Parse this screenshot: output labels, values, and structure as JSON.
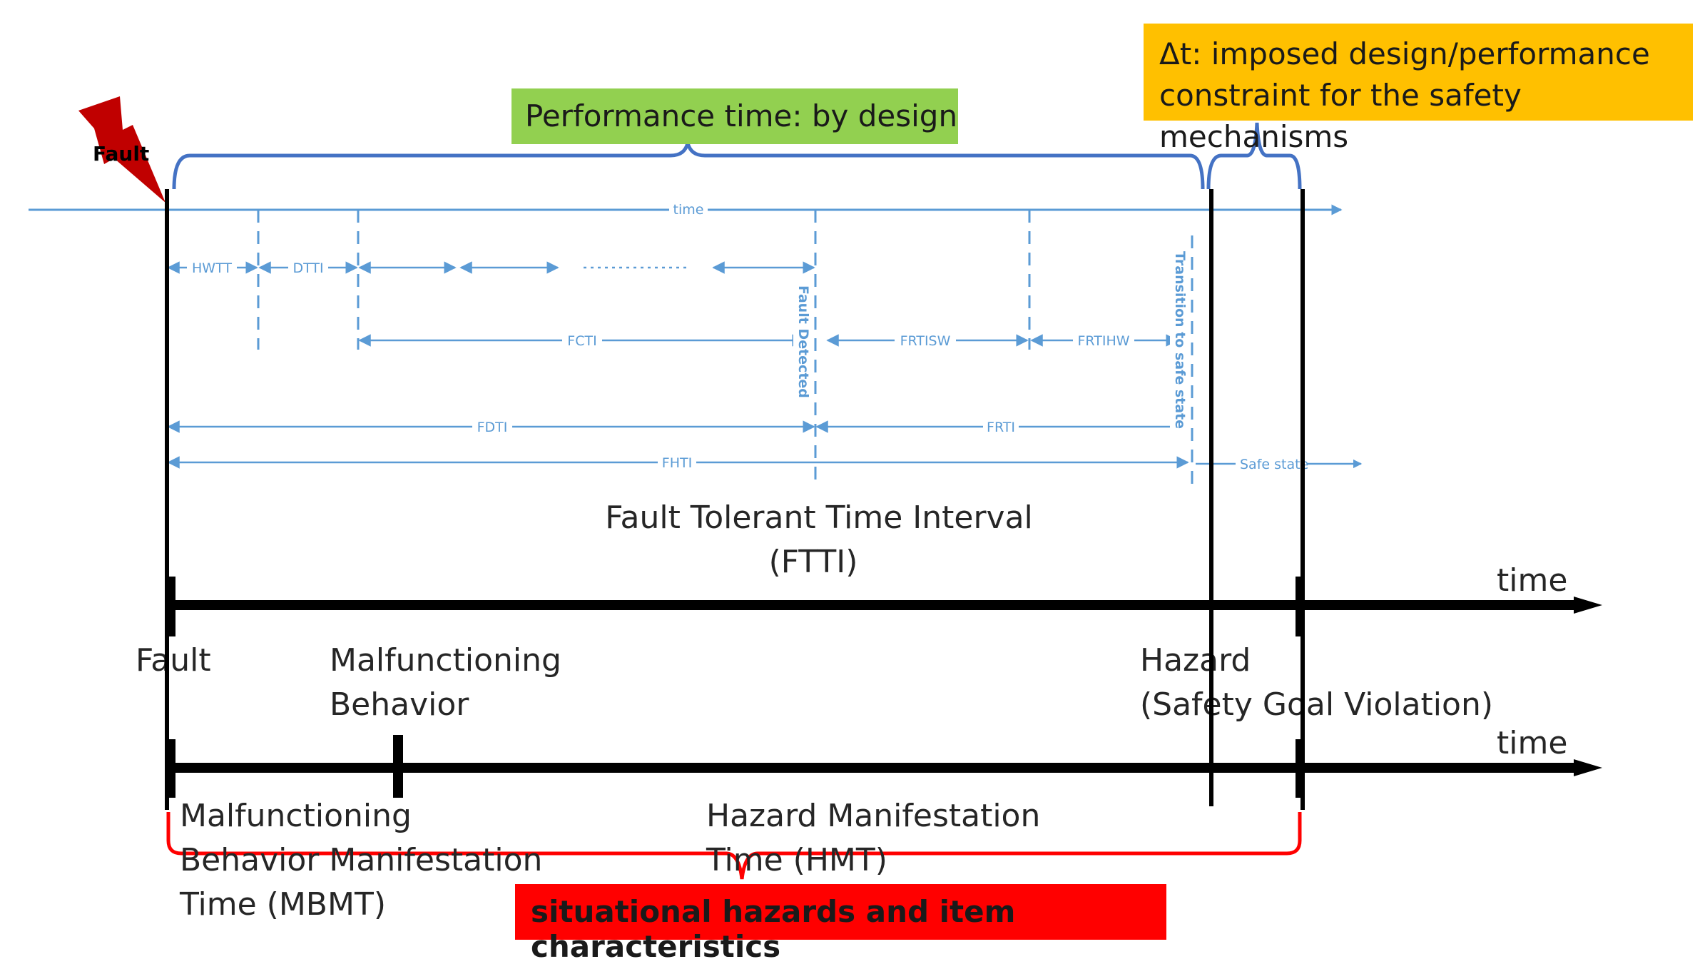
{
  "boxes": {
    "performance_time": "Performance time: by design",
    "delta_t_line1": "Δt: imposed design/performance",
    "delta_t_line2": "constraint for the safety mechanisms",
    "situational": "situational hazards and item characteristics"
  },
  "fault_icon_label": "Fault",
  "timeline_top": {
    "time_label": "time",
    "intervals": {
      "hwtt": "HWTT",
      "dtti": "DTTI",
      "fcti": "FCTI",
      "frtisw": "FRTISW",
      "frtihw": "FRTIHW",
      "fdti": "FDTI",
      "frti": "FRTI",
      "fhti": "FHTI",
      "safe_state": "Safe state"
    },
    "fault_detected": "Fault Detected",
    "transition": "Transition to safe state"
  },
  "ftti": {
    "line1": "Fault Tolerant Time Interval",
    "line2": "(FTTI)"
  },
  "timeline_mid": {
    "time_label": "time",
    "fault": "Fault",
    "malfunctioning_line1": "Malfunctioning",
    "malfunctioning_line2": "Behavior",
    "hazard_line1": "Hazard",
    "hazard_line2": "(Safety Goal Violation)"
  },
  "timeline_bottom": {
    "time_label": "time",
    "mbmt_line1": "Malfunctioning",
    "mbmt_line2": "Behavior Manifestation",
    "mbmt_line3": "Time (MBMT)",
    "hmt_line1": "Hazard Manifestation",
    "hmt_line2": "Time (HMT)"
  },
  "colors": {
    "blue": "#5b9bd5",
    "bracket_blue": "#4472c4",
    "green": "#92d050",
    "orange": "#ffc000",
    "red": "#ff0000",
    "fault_red": "#c00000"
  }
}
